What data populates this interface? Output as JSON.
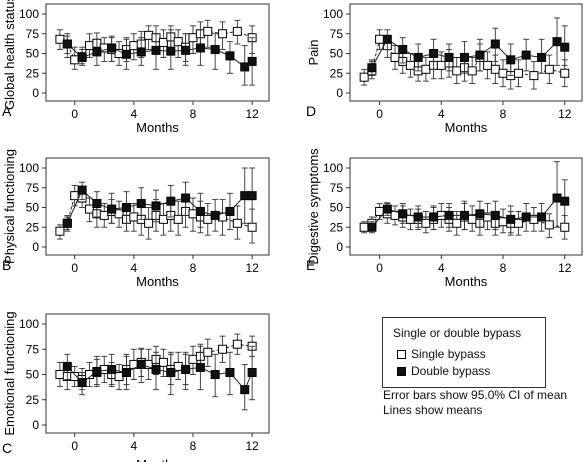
{
  "legend": {
    "title": "Single or double bypass",
    "single_label": "Single bypass",
    "double_label": "Double bypass"
  },
  "notes": {
    "error_bars": "Error bars show 95.0% CI of mean",
    "lines": "Lines show means"
  },
  "colors": {
    "single": "#ffffff",
    "double": "#111111",
    "line": "#222222"
  },
  "chart_data": [
    {
      "type": "line",
      "panel": "A",
      "ylabel": "Global health status",
      "xlabel": "Months",
      "ylim": [
        0,
        100
      ],
      "yticks": [
        0,
        25,
        50,
        75,
        100
      ],
      "xlim": [
        -1.4,
        12.6
      ],
      "xticks": [
        0,
        4,
        8,
        12
      ],
      "series": [
        {
          "name": "Single bypass",
          "x": [
            -1,
            -0.5,
            0,
            0.5,
            1,
            1.5,
            2,
            2.5,
            3,
            3.5,
            4,
            4.5,
            5,
            5.5,
            6,
            6.5,
            7,
            7.5,
            8,
            8.5,
            9,
            10,
            11,
            12
          ],
          "y": [
            68,
            62,
            42,
            46,
            60,
            63,
            57,
            55,
            50,
            55,
            60,
            62,
            73,
            70,
            64,
            71,
            65,
            58,
            70,
            75,
            78,
            75,
            78,
            70
          ],
          "lo": [
            55,
            45,
            30,
            35,
            45,
            48,
            40,
            40,
            35,
            40,
            42,
            45,
            55,
            52,
            45,
            52,
            45,
            40,
            50,
            55,
            58,
            55,
            62,
            50
          ],
          "hi": [
            80,
            75,
            58,
            58,
            75,
            76,
            70,
            70,
            65,
            70,
            75,
            78,
            85,
            85,
            80,
            85,
            80,
            75,
            85,
            90,
            92,
            90,
            92,
            85
          ]
        },
        {
          "name": "Double bypass",
          "x": [
            -0.5,
            0.5,
            1.5,
            2.5,
            3.5,
            4.5,
            5.5,
            6.5,
            7.5,
            8.5,
            9.5,
            10.5,
            11.5,
            12
          ],
          "y": [
            62,
            45,
            52,
            57,
            49,
            52,
            54,
            53,
            54,
            57,
            55,
            47,
            33,
            40
          ],
          "lo": [
            50,
            37,
            35,
            40,
            30,
            35,
            30,
            30,
            35,
            35,
            30,
            25,
            10,
            10
          ],
          "hi": [
            72,
            55,
            68,
            72,
            68,
            70,
            75,
            80,
            75,
            80,
            75,
            65,
            60,
            70
          ]
        }
      ]
    },
    {
      "type": "line",
      "panel": "B",
      "ylabel": "Physical functioning",
      "xlabel": "Months",
      "ylim": [
        0,
        100
      ],
      "yticks": [
        0,
        25,
        50,
        75,
        100
      ],
      "xlim": [
        -1.4,
        12.6
      ],
      "xticks": [
        0,
        4,
        8,
        12
      ],
      "series": [
        {
          "name": "Single bypass",
          "x": [
            -1,
            -0.5,
            0,
            0.5,
            1,
            1.5,
            2,
            2.5,
            3,
            3.5,
            4,
            4.5,
            5,
            5.5,
            6,
            6.5,
            7,
            7.5,
            8,
            8.5,
            9,
            10,
            11,
            12
          ],
          "y": [
            20,
            30,
            65,
            62,
            48,
            42,
            40,
            45,
            42,
            35,
            38,
            35,
            30,
            40,
            35,
            40,
            35,
            45,
            42,
            38,
            35,
            38,
            30,
            25
          ],
          "lo": [
            10,
            20,
            52,
            50,
            32,
            25,
            25,
            30,
            25,
            20,
            20,
            15,
            10,
            20,
            15,
            20,
            15,
            25,
            20,
            18,
            15,
            15,
            10,
            5
          ],
          "hi": [
            28,
            40,
            78,
            75,
            62,
            58,
            55,
            60,
            58,
            50,
            55,
            52,
            50,
            60,
            55,
            60,
            58,
            65,
            62,
            58,
            55,
            60,
            52,
            48
          ]
        },
        {
          "name": "Double bypass",
          "x": [
            -0.5,
            0.5,
            1.5,
            2.5,
            3.5,
            4.5,
            5.5,
            6.5,
            7.5,
            8.5,
            9.5,
            10.5,
            11.5,
            12
          ],
          "y": [
            30,
            72,
            55,
            48,
            50,
            55,
            52,
            58,
            62,
            45,
            40,
            45,
            65,
            65
          ],
          "lo": [
            22,
            60,
            38,
            30,
            30,
            35,
            32,
            38,
            40,
            25,
            20,
            22,
            30,
            30
          ],
          "hi": [
            38,
            82,
            70,
            68,
            70,
            75,
            72,
            78,
            82,
            68,
            60,
            68,
            100,
            100
          ]
        }
      ]
    },
    {
      "type": "line",
      "panel": "C",
      "ylabel": "Emotional functioning",
      "xlabel": "Months",
      "ylim": [
        0,
        100
      ],
      "yticks": [
        0,
        25,
        50,
        75,
        100
      ],
      "xlim": [
        -1.4,
        12.6
      ],
      "xticks": [
        0,
        4,
        8,
        12
      ],
      "series": [
        {
          "name": "Single bypass",
          "x": [
            -1,
            -0.5,
            0,
            0.5,
            1,
            1.5,
            2,
            2.5,
            3,
            3.5,
            4,
            4.5,
            5,
            5.5,
            6,
            6.5,
            7,
            7.5,
            8,
            8.5,
            9,
            10,
            11,
            12
          ],
          "y": [
            50,
            48,
            48,
            45,
            50,
            52,
            55,
            50,
            48,
            55,
            60,
            62,
            60,
            65,
            62,
            55,
            58,
            55,
            65,
            68,
            72,
            75,
            80,
            78
          ],
          "lo": [
            38,
            35,
            38,
            35,
            38,
            40,
            42,
            38,
            35,
            40,
            45,
            48,
            45,
            50,
            48,
            40,
            45,
            40,
            50,
            55,
            58,
            62,
            70,
            68
          ],
          "hi": [
            62,
            60,
            58,
            56,
            62,
            65,
            68,
            62,
            60,
            70,
            75,
            76,
            75,
            78,
            75,
            70,
            72,
            70,
            78,
            80,
            85,
            88,
            90,
            88
          ]
        },
        {
          "name": "Double bypass",
          "x": [
            -0.5,
            0.5,
            1.5,
            2.5,
            3.5,
            4.5,
            5.5,
            6.5,
            7.5,
            8.5,
            9.5,
            10.5,
            11.5,
            12
          ],
          "y": [
            58,
            42,
            53,
            55,
            52,
            60,
            55,
            52,
            55,
            57,
            50,
            52,
            35,
            52
          ],
          "lo": [
            45,
            30,
            38,
            40,
            35,
            42,
            35,
            30,
            35,
            35,
            28,
            30,
            15,
            25
          ],
          "hi": [
            70,
            52,
            68,
            70,
            68,
            75,
            72,
            72,
            72,
            78,
            70,
            72,
            60,
            78
          ]
        }
      ]
    },
    {
      "type": "line",
      "panel": "D",
      "ylabel": "Pain",
      "xlabel": "Months",
      "ylim": [
        0,
        100
      ],
      "yticks": [
        0,
        25,
        50,
        75,
        100
      ],
      "xlim": [
        -1.4,
        12.6
      ],
      "xticks": [
        0,
        4,
        8,
        12
      ],
      "series": [
        {
          "name": "Single bypass",
          "x": [
            -1,
            -0.5,
            0,
            0.5,
            1,
            1.5,
            2,
            2.5,
            3,
            3.5,
            4,
            4.5,
            5,
            5.5,
            6,
            6.5,
            7,
            7.5,
            8,
            8.5,
            9,
            10,
            11,
            12
          ],
          "y": [
            20,
            28,
            68,
            60,
            45,
            40,
            35,
            28,
            30,
            35,
            35,
            38,
            28,
            32,
            28,
            45,
            35,
            30,
            25,
            22,
            25,
            22,
            30,
            25
          ],
          "lo": [
            10,
            18,
            55,
            45,
            30,
            25,
            20,
            15,
            15,
            18,
            18,
            20,
            12,
            15,
            12,
            28,
            18,
            12,
            8,
            5,
            8,
            5,
            12,
            8
          ],
          "hi": [
            30,
            40,
            80,
            72,
            60,
            55,
            50,
            42,
            45,
            50,
            52,
            55,
            45,
            50,
            45,
            62,
            52,
            48,
            42,
            40,
            42,
            40,
            48,
            42
          ]
        },
        {
          "name": "Double bypass",
          "x": [
            -0.5,
            0.5,
            1.5,
            2.5,
            3.5,
            4.5,
            5.5,
            6.5,
            7.5,
            8.5,
            9.5,
            10.5,
            11.5,
            12
          ],
          "y": [
            32,
            68,
            55,
            45,
            50,
            45,
            45,
            48,
            62,
            42,
            48,
            45,
            65,
            58
          ],
          "lo": [
            22,
            55,
            38,
            28,
            30,
            28,
            25,
            28,
            40,
            22,
            28,
            25,
            35,
            35
          ],
          "hi": [
            42,
            80,
            70,
            62,
            68,
            62,
            65,
            68,
            82,
            62,
            68,
            68,
            95,
            85
          ]
        }
      ]
    },
    {
      "type": "line",
      "panel": "E",
      "ylabel": "Digestive symptoms",
      "xlabel": "Months",
      "ylim": [
        0,
        100
      ],
      "yticks": [
        0,
        25,
        50,
        75,
        100
      ],
      "xlim": [
        -1.4,
        12.6
      ],
      "xticks": [
        0,
        4,
        8,
        12
      ],
      "series": [
        {
          "name": "Single bypass",
          "x": [
            -1,
            -0.5,
            0,
            0.5,
            1,
            1.5,
            2,
            2.5,
            3,
            3.5,
            4,
            4.5,
            5,
            5.5,
            6,
            6.5,
            7,
            7.5,
            8,
            8.5,
            9,
            10,
            11,
            12
          ],
          "y": [
            25,
            30,
            45,
            42,
            40,
            38,
            35,
            35,
            30,
            35,
            40,
            35,
            30,
            38,
            35,
            30,
            38,
            30,
            32,
            30,
            30,
            35,
            28,
            25
          ],
          "lo": [
            18,
            22,
            35,
            30,
            28,
            25,
            22,
            22,
            18,
            22,
            25,
            20,
            15,
            22,
            20,
            15,
            22,
            15,
            18,
            15,
            15,
            20,
            12,
            10
          ],
          "hi": [
            32,
            38,
            55,
            55,
            52,
            52,
            48,
            48,
            45,
            50,
            55,
            50,
            45,
            55,
            52,
            45,
            55,
            45,
            48,
            45,
            45,
            50,
            42,
            40
          ]
        },
        {
          "name": "Double bypass",
          "x": [
            -0.5,
            0.5,
            1.5,
            2.5,
            3.5,
            4.5,
            5.5,
            6.5,
            7.5,
            8.5,
            9.5,
            10.5,
            11.5,
            12
          ],
          "y": [
            25,
            48,
            42,
            38,
            38,
            40,
            40,
            42,
            40,
            35,
            38,
            38,
            62,
            58
          ],
          "lo": [
            18,
            40,
            30,
            25,
            22,
            25,
            22,
            25,
            22,
            18,
            20,
            20,
            25,
            30
          ],
          "hi": [
            32,
            56,
            55,
            52,
            52,
            55,
            58,
            58,
            58,
            52,
            55,
            55,
            110,
            85
          ]
        }
      ]
    }
  ]
}
